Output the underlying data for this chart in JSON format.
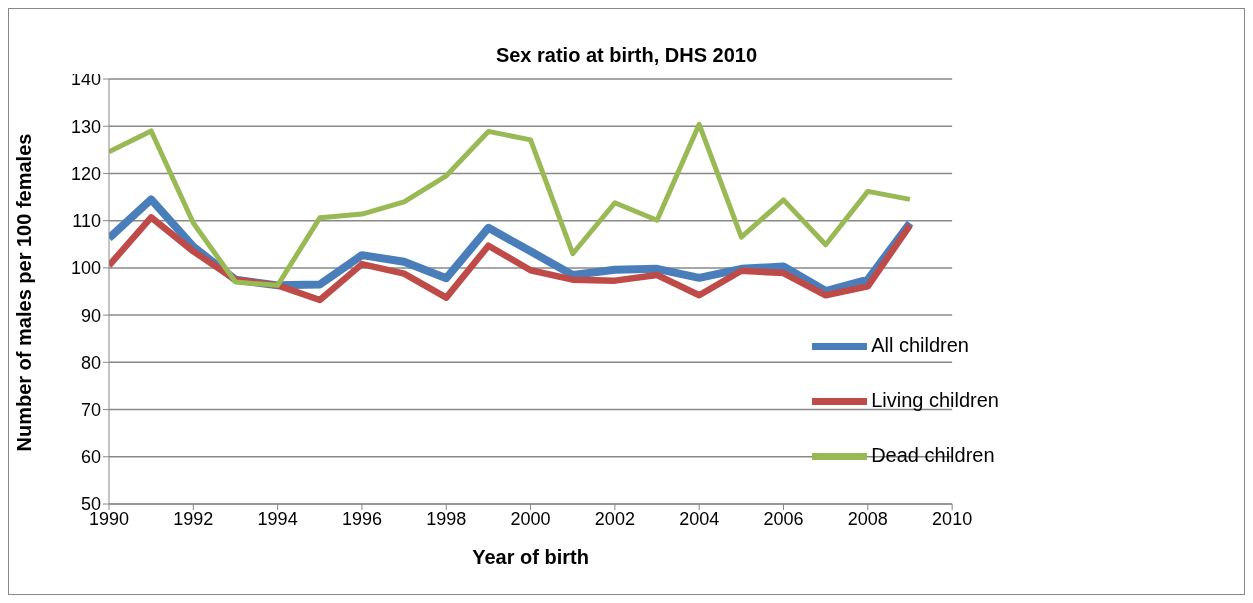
{
  "chart_data": {
    "type": "line",
    "title": "Sex ratio at birth, DHS 2010",
    "xlabel": "Year of birth",
    "ylabel": "Number of males per 100 females",
    "x": [
      1990,
      1991,
      1992,
      1993,
      1994,
      1995,
      1996,
      1997,
      1998,
      1999,
      2000,
      2001,
      2002,
      2003,
      2004,
      2005,
      2006,
      2007,
      2008,
      2009
    ],
    "series": [
      {
        "name": "All children",
        "color": "#4a7ebb",
        "values": [
          106.3,
          114.5,
          104.5,
          97.5,
          96.3,
          96.5,
          102.7,
          101.3,
          97.8,
          108.5,
          103.5,
          98.5,
          99.6,
          99.8,
          97.9,
          99.8,
          100.3,
          95.1,
          97.5,
          109.5
        ]
      },
      {
        "name": "Living children",
        "color": "#be4b48",
        "values": [
          100.5,
          110.7,
          103.5,
          97.5,
          96.3,
          93.2,
          100.8,
          98.8,
          93.7,
          104.7,
          99.5,
          97.5,
          97.3,
          98.5,
          94.2,
          99.4,
          98.9,
          94.2,
          96.1,
          109.0
        ]
      },
      {
        "name": "Dead children",
        "color": "#98b954",
        "values": [
          124.6,
          129,
          109.5,
          97,
          96.3,
          110.6,
          111.4,
          114,
          119.5,
          128.9,
          127.1,
          103,
          113.8,
          110.1,
          130.4,
          106.5,
          114.4,
          104.9,
          116.2,
          114.5
        ]
      }
    ],
    "xlim": [
      1990,
      2010
    ],
    "xticks": [
      1990,
      1992,
      1994,
      1996,
      1998,
      2000,
      2002,
      2004,
      2006,
      2008,
      2010
    ],
    "ylim": [
      50,
      140
    ],
    "yticks": [
      50,
      60,
      70,
      80,
      90,
      100,
      110,
      120,
      130,
      140
    ],
    "grid": "y",
    "legend": "right",
    "marker": "none",
    "line_style": "solid"
  }
}
